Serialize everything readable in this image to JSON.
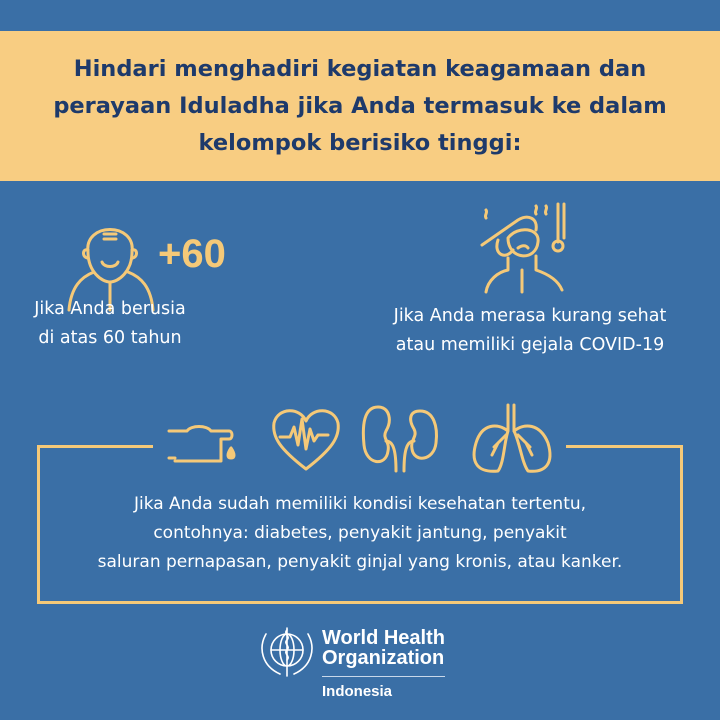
{
  "header": {
    "title": "Hindari menghadiri kegiatan keagamaan dan perayaan Iduladha jika Anda termasuk ke dalam kelompok berisiko tinggi:"
  },
  "items": [
    {
      "badge": "+60",
      "text_line1": "Jika Anda berusia",
      "text_line2": "di atas 60 tahun",
      "icon": "elderly-person-icon"
    },
    {
      "text_line1": "Jika Anda merasa kurang sehat",
      "text_line2": "atau memiliki gejala COVID-19",
      "icon": "sick-person-thermometer-icon"
    }
  ],
  "conditions": {
    "icons": [
      "blood-drop-finger-icon",
      "heart-pulse-icon",
      "kidneys-icon",
      "lungs-icon"
    ],
    "lines": [
      "Jika Anda sudah memiliki kondisi kesehatan tertentu,",
      "contohnya: diabetes, penyakit jantung, penyakit",
      "saluran pernapasan, penyakit ginjal yang kronis, atau kanker."
    ]
  },
  "footer": {
    "org_line1": "World Health",
    "org_line2": "Organization",
    "country": "Indonesia"
  },
  "colors": {
    "background": "#3a6fa6",
    "accent": "#f5c978",
    "banner": "#f8cd82",
    "title_text": "#1e3a6b"
  }
}
